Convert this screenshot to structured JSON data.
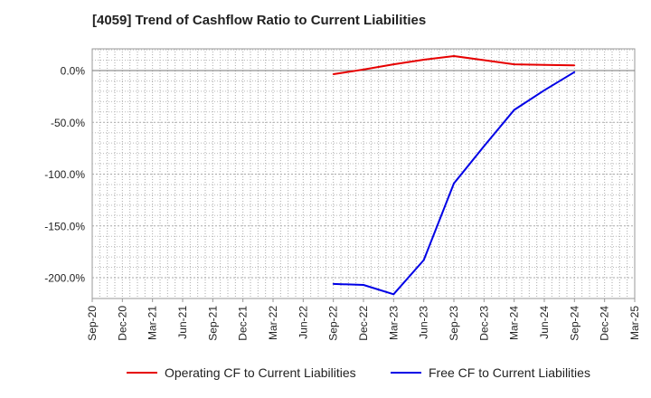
{
  "chart_data": {
    "type": "line",
    "title": "[4059]  Trend of Cashflow Ratio to Current Liabilities",
    "xlabel": "",
    "ylabel": "",
    "categories": [
      "Sep-20",
      "Dec-20",
      "Mar-21",
      "Jun-21",
      "Sep-21",
      "Dec-21",
      "Mar-22",
      "Jun-22",
      "Sep-22",
      "Dec-22",
      "Mar-23",
      "Jun-23",
      "Sep-23",
      "Dec-23",
      "Mar-24",
      "Jun-24",
      "Sep-24",
      "Dec-24",
      "Mar-25"
    ],
    "yticks": [
      "0.0%",
      "-50.0%",
      "-100.0%",
      "-150.0%",
      "-200.0%"
    ],
    "ylim": [
      -220,
      22
    ],
    "grid": true,
    "legend_position": "bottom",
    "series": [
      {
        "name": "Operating CF to Current Liabilities",
        "color": "#e60000",
        "values": [
          null,
          null,
          null,
          null,
          null,
          null,
          null,
          null,
          -3.5,
          1,
          6,
          10.5,
          14,
          10,
          6,
          5.5,
          5,
          null,
          null
        ]
      },
      {
        "name": "Free CF to Current Liabilities",
        "color": "#0000e6",
        "values": [
          null,
          null,
          null,
          null,
          null,
          null,
          null,
          null,
          -206,
          -207,
          -216,
          -183,
          -109,
          -73,
          -38,
          -19,
          -1.5,
          null,
          null
        ]
      }
    ]
  }
}
